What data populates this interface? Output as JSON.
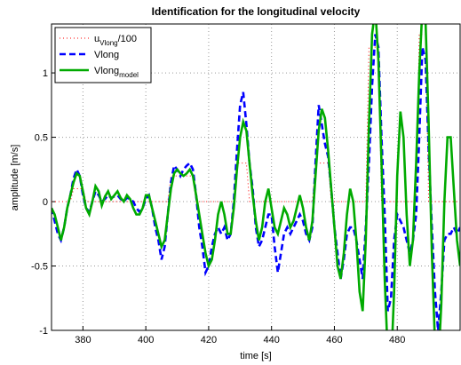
{
  "chart_data": {
    "type": "line",
    "title": "Identification for the longitudinal velocity",
    "x_label": "time [s]",
    "y_label": "amplitude [m/s]",
    "x": [
      370,
      371,
      372,
      373,
      374,
      375,
      376,
      377,
      378,
      379,
      380,
      381,
      382,
      383,
      384,
      385,
      386,
      387,
      388,
      389,
      390,
      391,
      392,
      393,
      394,
      395,
      396,
      397,
      398,
      399,
      400,
      401,
      402,
      403,
      404,
      405,
      406,
      407,
      408,
      409,
      410,
      411,
      412,
      413,
      414,
      415,
      416,
      417,
      418,
      419,
      420,
      421,
      422,
      423,
      424,
      425,
      426,
      427,
      428,
      429,
      430,
      431,
      432,
      433,
      434,
      435,
      436,
      437,
      438,
      439,
      440,
      441,
      442,
      443,
      444,
      445,
      446,
      447,
      448,
      449,
      450,
      451,
      452,
      453,
      454,
      455,
      456,
      457,
      458,
      459,
      460,
      461,
      462,
      463,
      464,
      465,
      466,
      467,
      468,
      469,
      470,
      471,
      472,
      473,
      474,
      475,
      476,
      477,
      478,
      479,
      480,
      481,
      482,
      483,
      484,
      485,
      486,
      487,
      488,
      489,
      490,
      491,
      492,
      493,
      494,
      495,
      496,
      497,
      498,
      499,
      500
    ],
    "series": [
      {
        "name": "u_{Vlong}/100",
        "color": "#ff0000",
        "style": "dotted",
        "width": 1,
        "values": [
          0,
          0,
          0,
          0,
          0,
          0,
          0,
          0.1,
          0.1,
          0.1,
          0.1,
          0,
          0,
          0,
          0,
          0,
          0,
          0,
          0,
          0,
          0,
          0,
          0,
          0,
          0,
          0,
          0,
          0,
          0,
          0,
          0,
          0,
          0,
          0,
          0,
          0,
          0,
          0,
          0.2,
          0.2,
          0.2,
          0.2,
          0.2,
          0.2,
          0.2,
          0.2,
          0,
          0,
          0,
          0,
          0,
          0,
          0,
          0,
          0,
          0,
          0,
          0,
          0,
          0.3,
          0.3,
          0.3,
          0.3,
          0,
          0,
          0,
          0,
          0,
          0,
          0,
          0,
          0,
          0,
          0,
          0,
          0,
          0,
          0,
          0,
          0,
          0,
          0,
          0,
          0,
          0.3,
          0.3,
          0.3,
          0.3,
          0.3,
          0,
          0,
          0,
          0,
          0,
          0,
          0,
          0,
          0,
          0,
          0,
          0,
          1.2,
          1.2,
          1.2,
          1.2,
          0,
          0,
          0,
          0,
          0,
          0,
          0,
          0,
          0,
          0,
          0,
          0,
          1.3,
          1.3,
          1.3,
          0,
          0,
          0,
          0,
          0,
          0,
          0,
          0,
          0,
          0,
          0
        ]
      },
      {
        "name": "Vlong",
        "color": "#0000ff",
        "style": "dashed",
        "width": 2.6,
        "values": [
          -0.05,
          -0.15,
          -0.25,
          -0.3,
          -0.2,
          -0.05,
          0.05,
          0.18,
          0.25,
          0.2,
          0.05,
          -0.05,
          -0.08,
          0.0,
          0.08,
          0.05,
          0.0,
          0.02,
          0.05,
          0.03,
          0.04,
          0.05,
          0.02,
          0.0,
          0.03,
          0.02,
          0.0,
          -0.05,
          -0.08,
          -0.05,
          0.02,
          0.05,
          -0.05,
          -0.2,
          -0.3,
          -0.45,
          -0.35,
          -0.1,
          0.15,
          0.28,
          0.25,
          0.2,
          0.25,
          0.28,
          0.3,
          0.25,
          0.05,
          -0.2,
          -0.35,
          -0.55,
          -0.5,
          -0.35,
          -0.25,
          -0.2,
          -0.25,
          -0.2,
          -0.3,
          -0.25,
          0.0,
          0.4,
          0.75,
          0.85,
          0.6,
          0.3,
          0.1,
          -0.2,
          -0.35,
          -0.3,
          -0.2,
          -0.1,
          -0.1,
          -0.35,
          -0.55,
          -0.4,
          -0.25,
          -0.2,
          -0.25,
          -0.2,
          -0.15,
          -0.1,
          -0.15,
          -0.25,
          -0.3,
          -0.2,
          0.3,
          0.75,
          0.6,
          0.45,
          0.35,
          0.1,
          -0.2,
          -0.4,
          -0.6,
          -0.45,
          -0.25,
          -0.2,
          -0.2,
          -0.3,
          -0.45,
          -0.6,
          -0.2,
          0.3,
          0.9,
          1.3,
          1.2,
          0.5,
          -0.1,
          -0.85,
          -0.75,
          -0.3,
          -0.1,
          -0.15,
          -0.2,
          -0.3,
          -0.4,
          -0.3,
          -0.1,
          0.5,
          1.2,
          1.1,
          0.4,
          -0.2,
          -0.7,
          -1.0,
          -0.7,
          -0.3,
          -0.25,
          -0.25,
          -0.2,
          -0.25,
          -0.2
        ]
      },
      {
        "name": "Vlong_{model}",
        "color": "#00aa00",
        "style": "solid",
        "width": 2.6,
        "values": [
          -0.05,
          -0.1,
          -0.2,
          -0.3,
          -0.2,
          -0.05,
          0.05,
          0.15,
          0.22,
          0.2,
          0.08,
          -0.05,
          -0.1,
          0.0,
          0.12,
          0.08,
          -0.03,
          0.04,
          0.08,
          0.02,
          0.05,
          0.08,
          0.03,
          0.0,
          0.05,
          0.02,
          -0.05,
          -0.1,
          -0.1,
          -0.05,
          0.05,
          0.05,
          -0.05,
          -0.15,
          -0.25,
          -0.35,
          -0.3,
          -0.1,
          0.1,
          0.22,
          0.25,
          0.22,
          0.2,
          0.22,
          0.25,
          0.2,
          0.05,
          -0.1,
          -0.25,
          -0.4,
          -0.5,
          -0.45,
          -0.3,
          -0.1,
          0.0,
          -0.1,
          -0.25,
          -0.25,
          -0.05,
          0.25,
          0.5,
          0.62,
          0.55,
          0.3,
          0.05,
          -0.15,
          -0.3,
          -0.2,
          0.0,
          0.1,
          -0.05,
          -0.2,
          -0.25,
          -0.15,
          -0.05,
          -0.1,
          -0.2,
          -0.15,
          -0.05,
          0.05,
          -0.05,
          -0.2,
          -0.3,
          -0.15,
          0.2,
          0.55,
          0.72,
          0.65,
          0.4,
          0.1,
          -0.2,
          -0.5,
          -0.6,
          -0.4,
          -0.1,
          0.1,
          0.0,
          -0.3,
          -0.7,
          -0.85,
          -0.3,
          0.6,
          1.3,
          1.5,
          1.1,
          0.3,
          -0.6,
          -1.2,
          -1.3,
          -0.7,
          0.2,
          0.7,
          0.5,
          -0.1,
          -0.5,
          -0.3,
          0.3,
          1.0,
          1.5,
          1.4,
          0.6,
          -0.4,
          -1.1,
          -1.3,
          -0.8,
          0.0,
          0.5,
          0.5,
          0.1,
          -0.3,
          -0.5
        ]
      }
    ],
    "xlim": [
      370,
      500
    ],
    "ylim": [
      -1,
      1.38
    ],
    "xticks": [
      380,
      400,
      420,
      440,
      460,
      480
    ],
    "yticks": [
      -1,
      -0.5,
      0,
      0.5,
      1
    ],
    "grid": true,
    "legend": "upper left"
  }
}
